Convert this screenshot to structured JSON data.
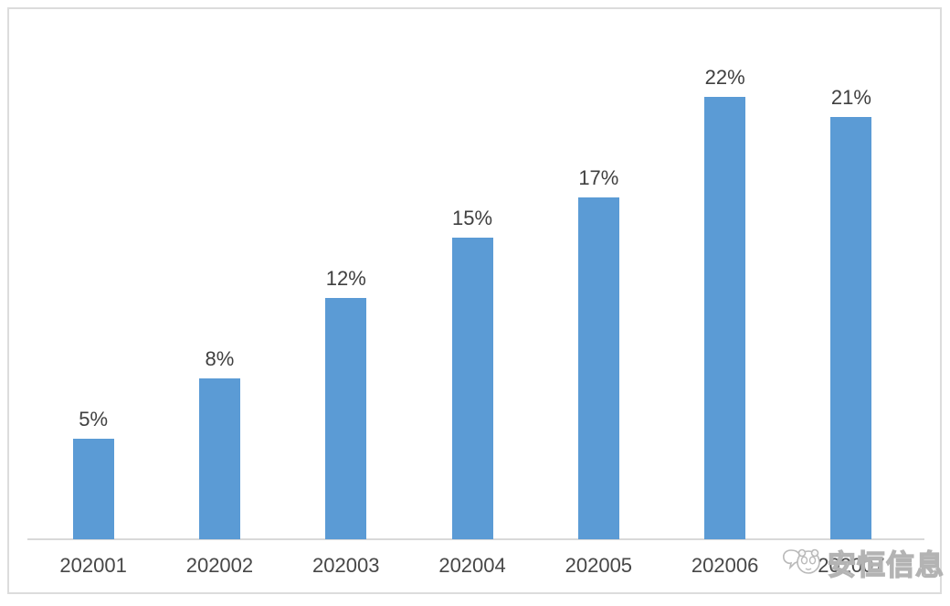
{
  "chart_data": {
    "type": "bar",
    "title": "",
    "xlabel": "",
    "ylabel": "",
    "categories": [
      "202001",
      "202002",
      "202003",
      "202004",
      "202005",
      "202006",
      "202007"
    ],
    "values": [
      5,
      8,
      12,
      15,
      17,
      22,
      21
    ],
    "value_labels": [
      "5%",
      "8%",
      "12%",
      "15%",
      "17%",
      "22%",
      "21%"
    ],
    "unit": "%",
    "ylim": [
      0,
      25
    ],
    "grid": false,
    "legend": false,
    "bar_color": "#5B9BD5",
    "axis_line_color": "#D9D9D9",
    "label_color": "#3F3F3F",
    "frame_border_color": "#DCDCDC",
    "background_color": "#FFFFFF"
  },
  "watermark": {
    "text": "安恒信息",
    "logo": "anheng-mascot-icon",
    "style": "outlined-gray"
  }
}
